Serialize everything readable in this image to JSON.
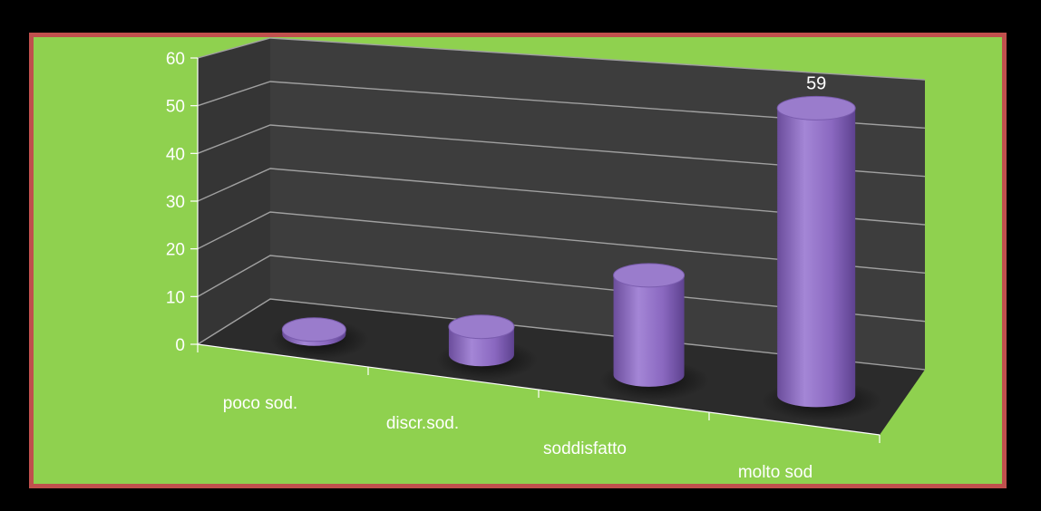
{
  "colors": {
    "background": "#000000",
    "panel": "#8fd14f",
    "panel_border": "#c0504d",
    "wall": "#3d3d3d",
    "floor": "#2b2b2b",
    "gridline": "#a0a0a0",
    "bar": "#8e6cc0"
  },
  "chart_data": {
    "type": "bar",
    "categories": [
      "poco sod.",
      "discr.sod.",
      "soddisfatto",
      "molto sod"
    ],
    "values": [
      1,
      6,
      21,
      59
    ],
    "data_labels": [
      "",
      "",
      "",
      "59"
    ],
    "ylim": [
      0,
      60
    ],
    "yticks": [
      0,
      10,
      20,
      30,
      40,
      50,
      60
    ],
    "grid": true,
    "style": "3d-cylinder"
  }
}
